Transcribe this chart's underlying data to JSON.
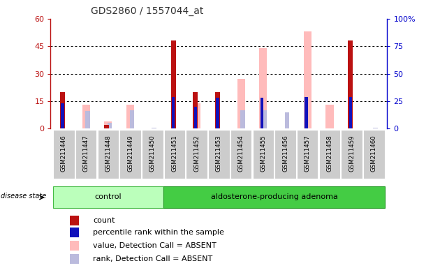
{
  "title": "GDS2860 / 1557044_at",
  "samples": [
    "GSM211446",
    "GSM211447",
    "GSM211448",
    "GSM211449",
    "GSM211450",
    "GSM211451",
    "GSM211452",
    "GSM211453",
    "GSM211454",
    "GSM211455",
    "GSM211456",
    "GSM211457",
    "GSM211458",
    "GSM211459",
    "GSM211460"
  ],
  "count": [
    20,
    0,
    2,
    0,
    0,
    48,
    20,
    20,
    0,
    0,
    0,
    0,
    0,
    48,
    0
  ],
  "percentile_rank": [
    23,
    0,
    0,
    0,
    0,
    29,
    20,
    28,
    0,
    28,
    0,
    29,
    0,
    29,
    0
  ],
  "value_absent": [
    0,
    13,
    4,
    13,
    0,
    0,
    14,
    0,
    27,
    44,
    0,
    53,
    13,
    0,
    0
  ],
  "rank_absent": [
    0,
    16,
    5,
    17,
    1,
    0,
    0,
    0,
    17,
    17,
    15,
    0,
    0,
    0,
    1
  ],
  "ylim_left": [
    0,
    60
  ],
  "ylim_right": [
    0,
    100
  ],
  "yticks_left": [
    0,
    15,
    30,
    45,
    60
  ],
  "yticks_right": [
    0,
    25,
    50,
    75,
    100
  ],
  "count_color": "#bb1111",
  "percentile_color": "#1111bb",
  "value_absent_color": "#ffbbbb",
  "rank_absent_color": "#bbbbdd",
  "cell_bg_color": "#cccccc",
  "plot_bg_color": "#ffffff",
  "left_axis_color": "#bb1111",
  "right_axis_color": "#0000cc",
  "control_color_light": "#bbffbb",
  "control_color_border": "#44bb44",
  "adenoma_color": "#44cc44",
  "adenoma_color_border": "#229922",
  "title_color": "#333333",
  "n_control": 5,
  "n_total": 15
}
